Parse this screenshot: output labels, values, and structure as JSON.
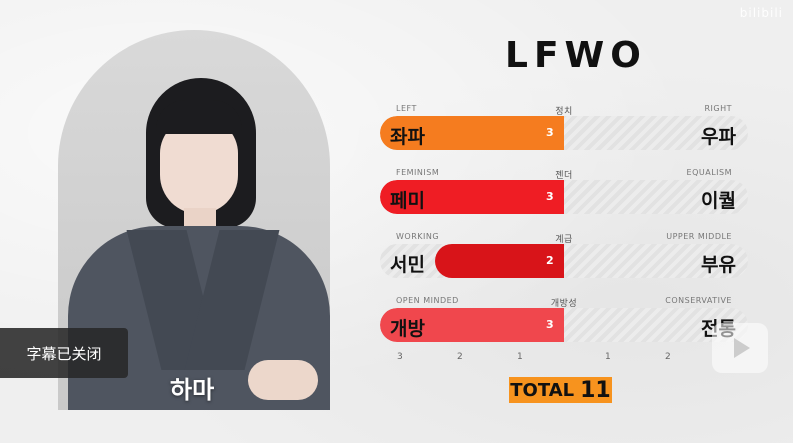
{
  "watermark": "bilibili",
  "title": "LFWO",
  "portrait": {
    "name": "하마"
  },
  "subtitle_toast": "字幕已关闭",
  "rows": [
    {
      "category": "정치",
      "left_en": "LEFT",
      "right_en": "RIGHT",
      "left_word": "좌파",
      "right_word": "우파",
      "score": "3",
      "fill_fraction": 0.5,
      "color": "#f57c1f"
    },
    {
      "category": "젠더",
      "left_en": "FEMINISM",
      "right_en": "EQUALISM",
      "left_word": "페미",
      "right_word": "이퀄",
      "score": "3",
      "fill_fraction": 0.5,
      "color": "#ef1d24"
    },
    {
      "category": "계급",
      "left_en": "WORKING",
      "right_en": "UPPER MIDDLE",
      "left_word": "서민",
      "right_word": "부유",
      "score": "2",
      "fill_fraction": 0.35,
      "color": "#d81419"
    },
    {
      "category": "개방성",
      "left_en": "OPEN MINDED",
      "right_en": "CONSERVATIVE",
      "left_word": "개방",
      "right_word": "전통",
      "score": "3",
      "fill_fraction": 0.5,
      "color": "#f0474d"
    }
  ],
  "scale": [
    "3",
    "2",
    "1",
    "1",
    "2"
  ],
  "total": {
    "label": "TOTAL",
    "value": "11"
  },
  "colors": {
    "accent": "#f7931e"
  }
}
